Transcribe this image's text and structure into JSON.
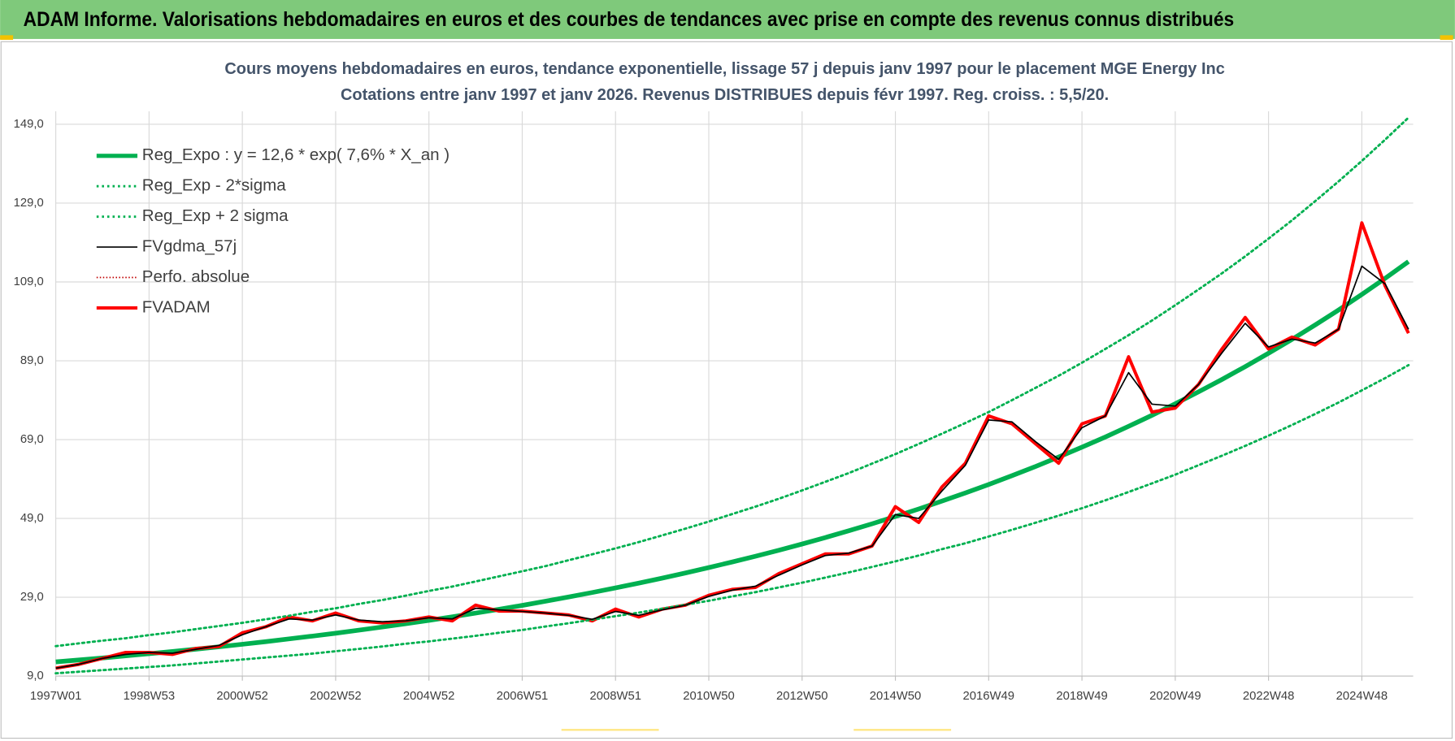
{
  "header": {
    "title": "ADAM Informe. Valorisations hebdomadaires en euros et des courbes de tendances avec prise en compte des revenus connus distribués"
  },
  "chart_data": {
    "type": "line",
    "title": "Cours moyens hebdomadaires en euros, tendance exponentielle, lissage 57 j depuis janv 1997  pour le placement MGE Energy Inc",
    "subtitle": "Cotations entre janv 1997 et janv 2026. Revenus DISTRIBUES depuis févr 1997. Reg. croiss. : 5,5/20.",
    "grid": true,
    "legend": "top-left",
    "xlim": [
      1997,
      2026.1
    ],
    "ylim": [
      9,
      149
    ],
    "xticks": [
      {
        "value": 1997,
        "label": "1997W01"
      },
      {
        "value": 1999,
        "label": "1998W53"
      },
      {
        "value": 2001,
        "label": "2000W52"
      },
      {
        "value": 2003,
        "label": "2002W52"
      },
      {
        "value": 2005,
        "label": "2004W52"
      },
      {
        "value": 2007,
        "label": "2006W51"
      },
      {
        "value": 2009,
        "label": "2008W51"
      },
      {
        "value": 2011,
        "label": "2010W50"
      },
      {
        "value": 2013,
        "label": "2012W50"
      },
      {
        "value": 2015,
        "label": "2014W50"
      },
      {
        "value": 2017,
        "label": "2016W49"
      },
      {
        "value": 2019,
        "label": "2018W49"
      },
      {
        "value": 2021,
        "label": "2020W49"
      },
      {
        "value": 2023,
        "label": "2022W48"
      },
      {
        "value": 2025,
        "label": "2024W48"
      }
    ],
    "yticks": [
      {
        "value": 9,
        "label": "9,0"
      },
      {
        "value": 29,
        "label": "29,0"
      },
      {
        "value": 49,
        "label": "49,0"
      },
      {
        "value": 69,
        "label": "69,0"
      },
      {
        "value": 89,
        "label": "89,0"
      },
      {
        "value": 109,
        "label": "109,0"
      },
      {
        "value": 129,
        "label": "129,0"
      },
      {
        "value": 149,
        "label": "149,0"
      }
    ],
    "x": [
      1997,
      1997.5,
      1998,
      1998.5,
      1999,
      1999.5,
      2000,
      2000.5,
      2001,
      2001.5,
      2002,
      2002.5,
      2003,
      2003.5,
      2004,
      2004.5,
      2005,
      2005.5,
      2006,
      2006.5,
      2007,
      2007.5,
      2008,
      2008.5,
      2009,
      2009.5,
      2010,
      2010.5,
      2011,
      2011.5,
      2012,
      2012.5,
      2013,
      2013.5,
      2014,
      2014.5,
      2015,
      2015.5,
      2016,
      2016.5,
      2017,
      2017.5,
      2018,
      2018.5,
      2019,
      2019.5,
      2020,
      2020.5,
      2021,
      2021.5,
      2022,
      2022.5,
      2023,
      2023.5,
      2024,
      2024.5,
      2025,
      2025.5,
      2026
    ],
    "series": [
      {
        "name": "Reg_Expo : y = 12,6 * exp( 7,6% *  X_an )",
        "color": "#00b050",
        "style": "solid",
        "width": 5,
        "values": [
          12.6,
          13.09,
          13.6,
          14.12,
          14.67,
          15.24,
          15.83,
          16.44,
          17.08,
          17.74,
          18.43,
          19.14,
          19.88,
          20.65,
          21.45,
          22.28,
          23.15,
          24.04,
          24.98,
          25.95,
          26.94,
          27.99,
          29.07,
          30.2,
          31.37,
          32.58,
          33.84,
          35.16,
          36.52,
          37.93,
          39.4,
          40.92,
          42.51,
          44.16,
          45.87,
          47.64,
          49.49,
          51.41,
          53.4,
          55.47,
          57.61,
          59.84,
          62.16,
          64.57,
          67.07,
          69.67,
          72.37,
          75.17,
          78.08,
          81.11,
          84.24,
          87.51,
          90.9,
          94.42,
          98.08,
          101.87,
          105.82,
          109.92,
          114.18
        ]
      },
      {
        "name": "Reg_Exp - 2*sigma",
        "color": "#00b050",
        "style": "dotted",
        "width": 2.5,
        "values": [
          9.7,
          10.1,
          10.5,
          10.9,
          11.3,
          11.7,
          12.2,
          12.7,
          13.2,
          13.7,
          14.2,
          14.7,
          15.3,
          15.9,
          16.5,
          17.2,
          17.8,
          18.5,
          19.2,
          20.0,
          20.7,
          21.6,
          22.4,
          23.3,
          24.2,
          25.1,
          26.1,
          27.1,
          28.1,
          29.2,
          30.3,
          31.5,
          32.7,
          34.0,
          35.3,
          36.7,
          38.1,
          39.6,
          41.2,
          42.7,
          44.4,
          46.1,
          47.9,
          49.7,
          51.6,
          53.6,
          55.7,
          57.9,
          60.1,
          62.5,
          64.9,
          67.4,
          70.0,
          72.7,
          75.5,
          78.4,
          81.5,
          84.6,
          87.9
        ]
      },
      {
        "name": "Reg_Exp + 2 sigma",
        "color": "#00b050",
        "style": "dotted",
        "width": 2.5,
        "values": [
          16.6,
          17.3,
          18.0,
          18.6,
          19.4,
          20.1,
          20.9,
          21.7,
          22.5,
          23.4,
          24.3,
          25.3,
          26.2,
          27.3,
          28.3,
          29.4,
          30.6,
          31.7,
          33.0,
          34.3,
          35.6,
          36.9,
          38.4,
          39.9,
          41.4,
          43.0,
          44.7,
          46.4,
          48.2,
          50.1,
          52.0,
          54.0,
          56.1,
          58.3,
          60.5,
          62.9,
          65.3,
          67.9,
          70.5,
          73.2,
          76.0,
          79.0,
          82.1,
          85.2,
          88.5,
          92.0,
          95.5,
          99.2,
          103.1,
          107.1,
          111.2,
          115.5,
          120.0,
          124.6,
          129.5,
          134.5,
          139.7,
          145.1,
          150.7
        ]
      },
      {
        "name": "FVgdma_57j",
        "color": "#000000",
        "style": "solid",
        "width": 1.5,
        "values": [
          11,
          12,
          13.5,
          14.5,
          15,
          14.8,
          15.8,
          16.8,
          19.5,
          21.5,
          23.5,
          23.2,
          24.5,
          23.2,
          22.8,
          23,
          23.8,
          23.5,
          26.2,
          25.8,
          25.4,
          25,
          24.4,
          23.4,
          25.4,
          24.4,
          25.8,
          27,
          29.2,
          30.8,
          31.8,
          34.6,
          37.2,
          39.6,
          40.2,
          42,
          50,
          49,
          56,
          62.5,
          74,
          73.5,
          68.5,
          64,
          72,
          75,
          86,
          78,
          77.5,
          83,
          91,
          98.5,
          92.5,
          94.5,
          93.5,
          97,
          113,
          108.5,
          97
        ]
      },
      {
        "name": "Perfo. absolue",
        "color": "#c00000",
        "style": "dotted",
        "width": 1.5,
        "values": [
          null,
          null,
          null,
          null,
          null,
          null,
          null,
          null,
          null,
          null,
          null,
          null,
          null,
          null,
          null,
          null,
          null,
          null,
          null,
          null,
          null,
          null,
          null,
          null,
          null,
          null,
          null,
          null,
          null,
          null,
          null,
          null,
          null,
          null,
          null,
          null,
          null,
          null,
          null,
          null,
          null,
          null,
          null,
          null,
          null,
          null,
          null,
          null,
          null,
          null,
          null,
          null,
          null,
          null,
          null,
          null,
          null,
          null,
          null
        ]
      },
      {
        "name": "FVADAM",
        "color": "#ff0000",
        "style": "solid",
        "width": 3.5,
        "values": [
          11,
          12,
          13.5,
          15,
          15,
          14.5,
          16,
          16.5,
          20,
          21.5,
          24,
          23,
          25,
          23,
          22.5,
          23,
          24,
          23,
          27,
          25.5,
          25.5,
          25,
          24.5,
          23,
          26,
          24,
          26,
          27,
          29.5,
          31,
          31.5,
          35,
          37.5,
          40,
          40,
          42,
          52,
          48,
          57,
          63,
          75,
          73,
          68,
          63,
          73,
          75,
          90,
          76,
          77,
          83,
          92,
          100,
          92,
          95,
          93,
          97,
          124,
          108,
          96
        ]
      }
    ]
  }
}
